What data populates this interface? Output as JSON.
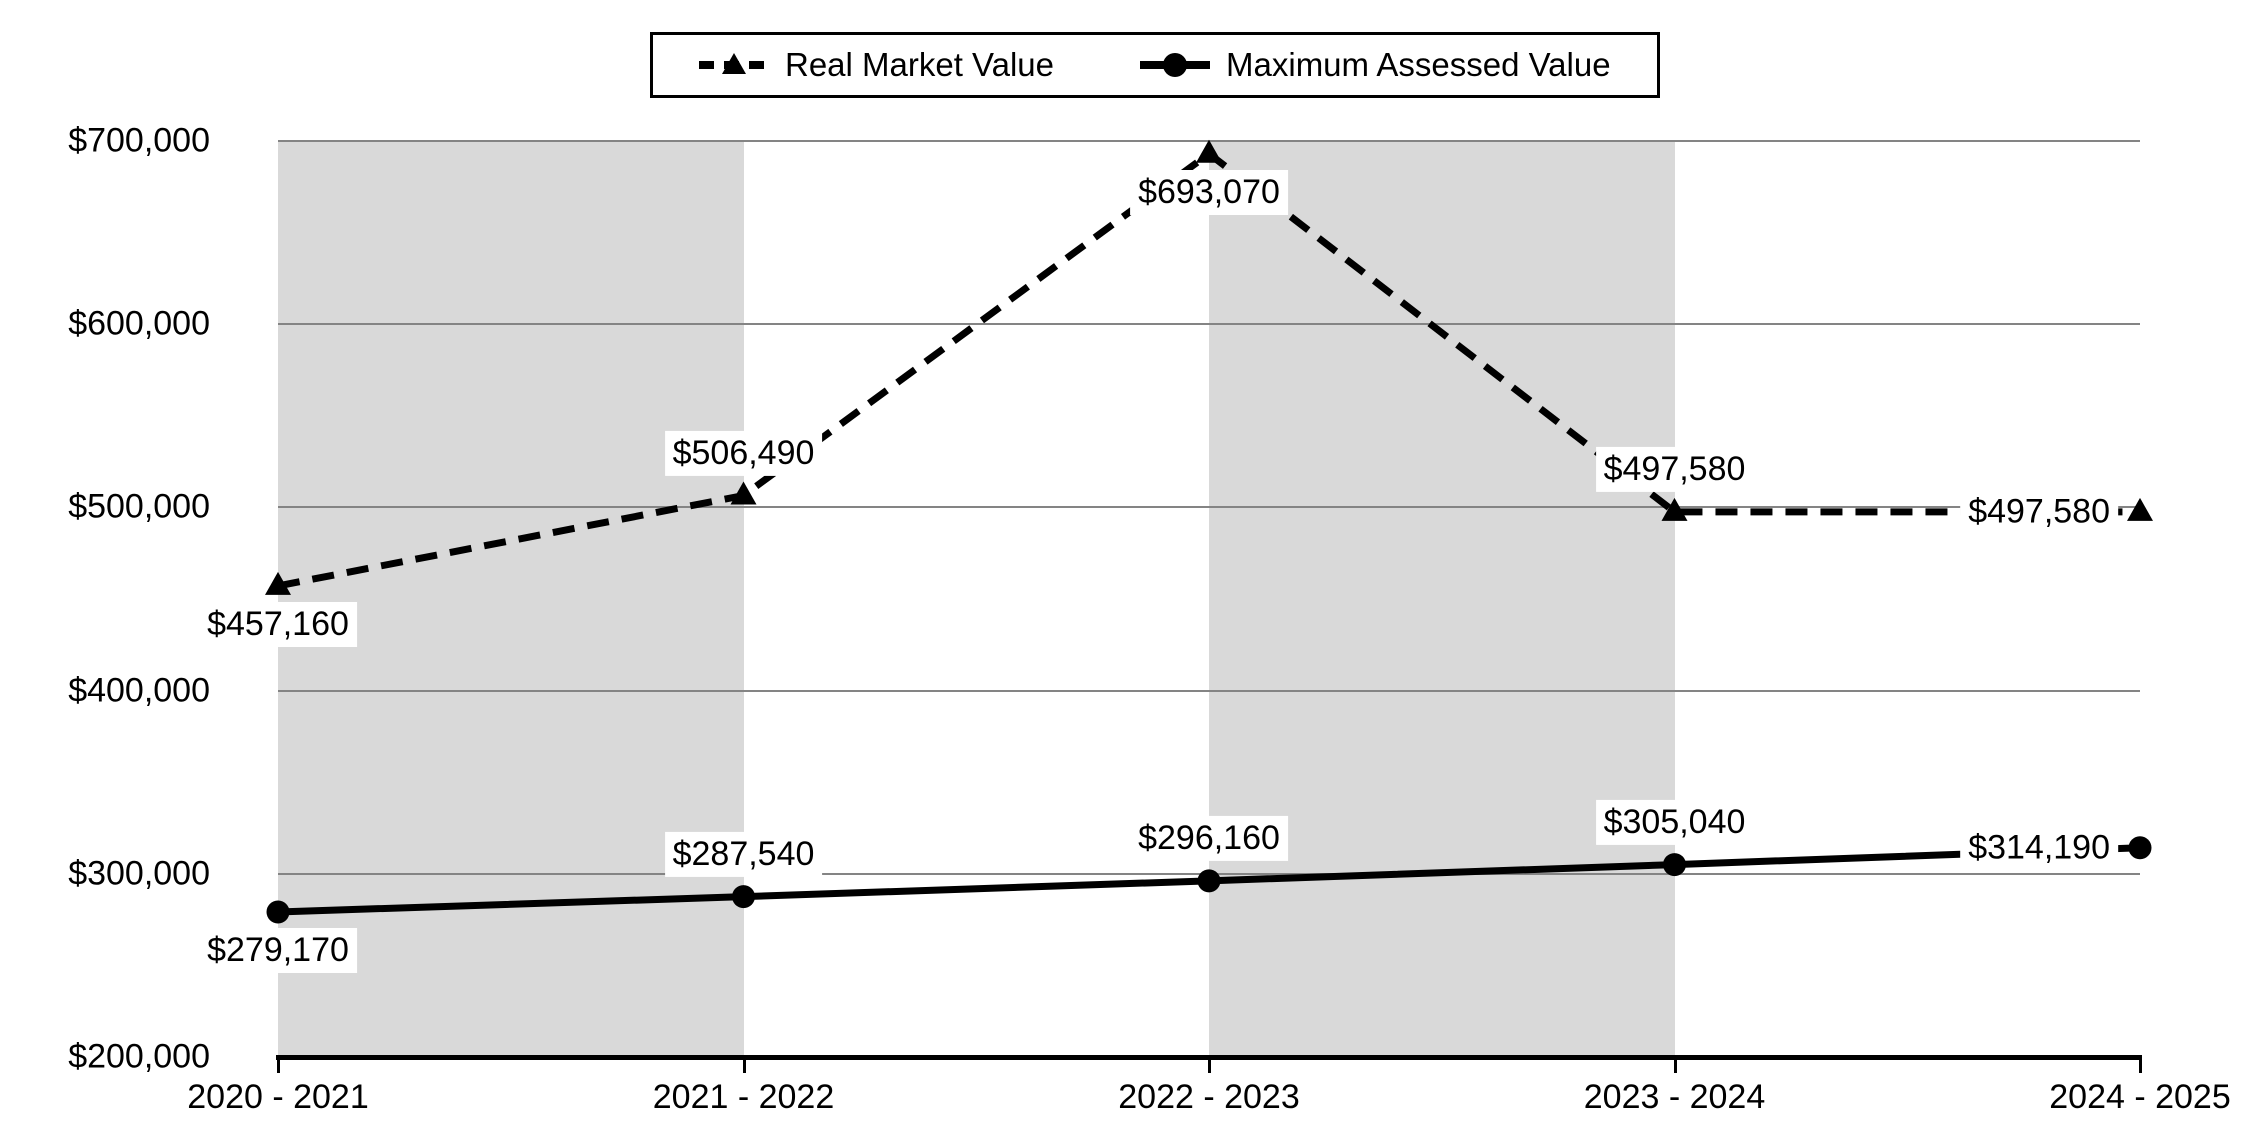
{
  "chart_data": {
    "type": "line",
    "title": "",
    "xlabel": "",
    "ylabel": "",
    "categories": [
      "2020 - 2021",
      "2021 - 2022",
      "2022 - 2023",
      "2023 - 2024",
      "2024 - 2025"
    ],
    "ylim": [
      200000,
      700000
    ],
    "y_tick_step": 100000,
    "y_tick_labels": [
      "$700,000",
      "$600,000",
      "$500,000",
      "$400,000",
      "$300,000",
      "$200,000"
    ],
    "grid": "horizontal",
    "legend_position": "top-center",
    "plot_band_spans": [
      [
        0,
        1
      ],
      [
        2,
        3
      ]
    ],
    "series": [
      {
        "name": "Real Market Value",
        "line_style": "dashed",
        "marker": "triangle",
        "color": "#000000",
        "values": [
          457160,
          506490,
          693070,
          497580,
          497580
        ],
        "labels": [
          "$457,160",
          "$506,490",
          "$693,070",
          "$497,580",
          "$497,580"
        ],
        "label_placement": [
          "below",
          "above",
          "below",
          "above",
          "left"
        ]
      },
      {
        "name": "Maximum Assessed Value",
        "line_style": "solid",
        "marker": "circle",
        "color": "#000000",
        "values": [
          279170,
          287540,
          296160,
          305040,
          314190
        ],
        "labels": [
          "$279,170",
          "$287,540",
          "$296,160",
          "$305,040",
          "$314,190"
        ],
        "label_placement": [
          "below",
          "above",
          "above",
          "above",
          "left"
        ]
      }
    ],
    "colors": {
      "band": "#d9d9d9",
      "gridline": "#848484",
      "axis": "#000000",
      "series": "#000000",
      "label_background": "#ffffff",
      "text": "#000000"
    }
  }
}
